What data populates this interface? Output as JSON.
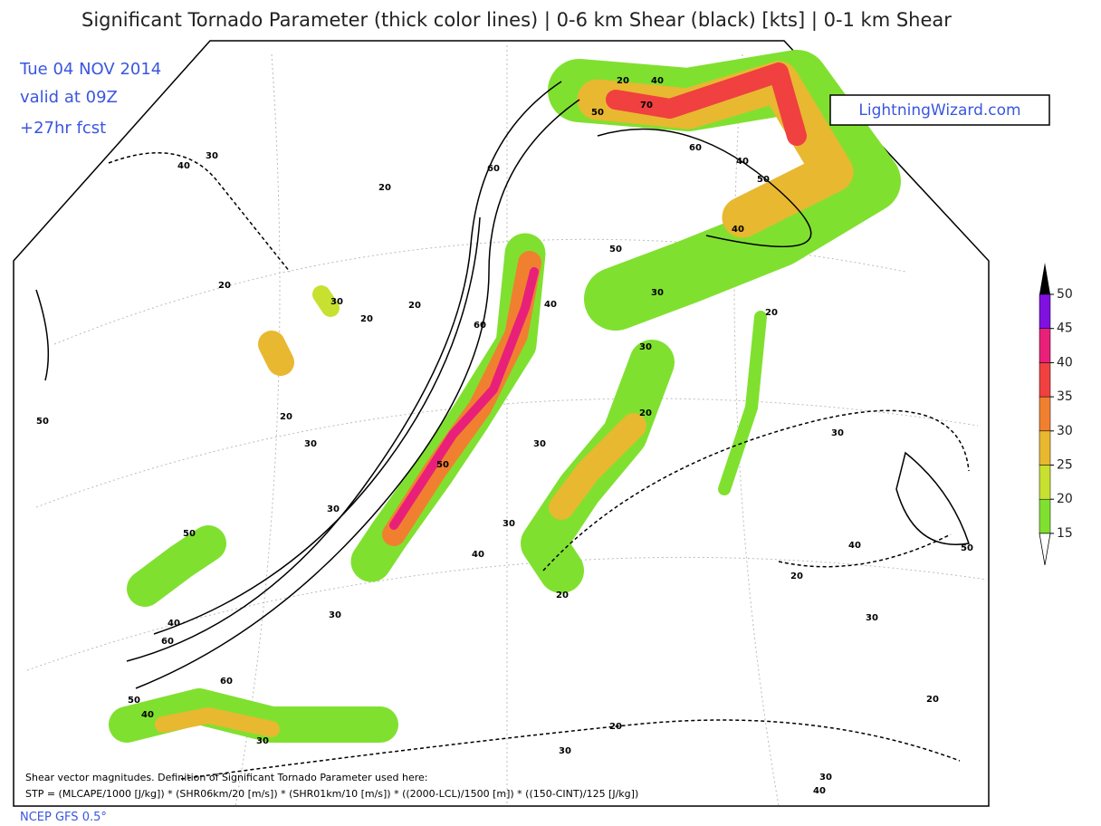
{
  "header": {
    "title": "Significant Tornado Parameter (thick color lines) | 0-6 km Shear (black) [kts] | 0-1 km Shear",
    "date": "Tue 04 NOV 2014",
    "valid": "valid at 09Z",
    "forecast": "+27hr fcst",
    "brand": "LightningWizard.com"
  },
  "colorbar": {
    "levels": [
      15,
      20,
      25,
      30,
      35,
      40,
      45,
      50
    ],
    "colors": [
      "#80e030",
      "#c8e030",
      "#e8b830",
      "#f08030",
      "#f04040",
      "#e8207a",
      "#8010e0"
    ]
  },
  "contour_labels": [
    30,
    40,
    20,
    30,
    20,
    20,
    20,
    50,
    30,
    20,
    30,
    50,
    40,
    30,
    30,
    20,
    30,
    30,
    20,
    50,
    40,
    50,
    40,
    60,
    70,
    40,
    20,
    60,
    50,
    40,
    60,
    30,
    40,
    50,
    20,
    30,
    20,
    20,
    30,
    20,
    30,
    30,
    40,
    60,
    50,
    60,
    50,
    40,
    30,
    40
  ],
  "footer": {
    "note": "Shear vector magnitudes. Definition of Significant Tornado Parameter used here:",
    "formula": "STP = (MLCAPE/1000 [J/kg]) * (SHR06km/20 [m/s]) * (SHR01km/10 [m/s]) * ((2000-LCL)/1500 [m]) * ((150-CINT)/125 [J/kg])",
    "source": "NCEP GFS 0.5°"
  }
}
